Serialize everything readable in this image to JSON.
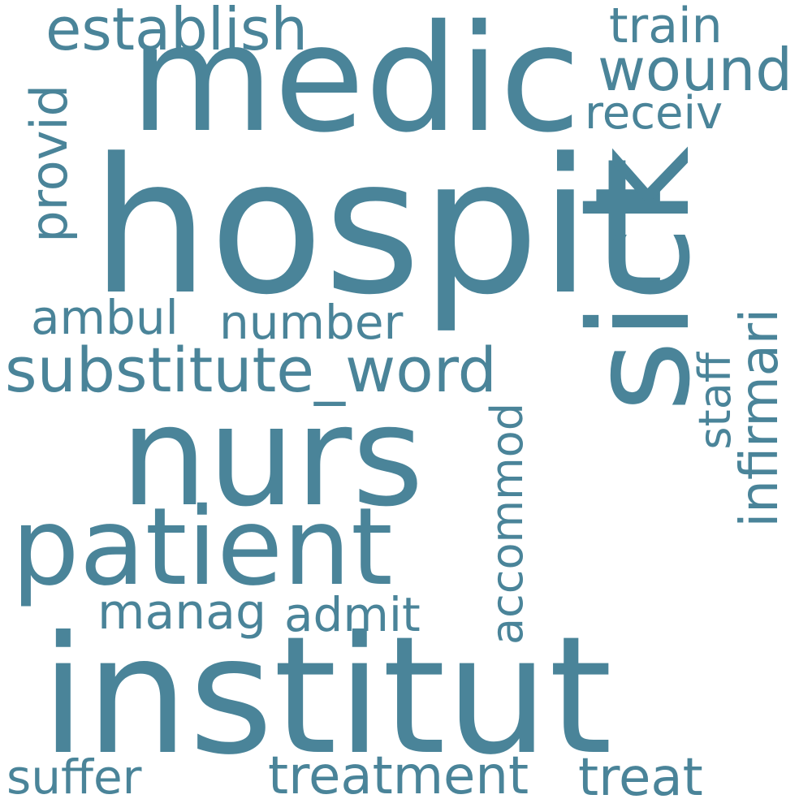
{
  "word_color": "#4a8499",
  "background": "#ffffff",
  "words": {
    "hospit": "hospit",
    "medic": "medic",
    "nurs": "nurs",
    "institut": "institut",
    "sick": "sick",
    "patient": "patient",
    "substitute_word": "substitute_word",
    "establish": "establish",
    "train": "train",
    "wound": "wound",
    "receiv": "receiv",
    "provid": "provid",
    "ambul": "ambul",
    "number": "number",
    "infirmari": "infirmari",
    "staff": "staff",
    "accommod": "accommod",
    "manag": "manag",
    "admit": "admit",
    "suffer": "suffer",
    "treatment": "treatment",
    "treat": "treat"
  }
}
